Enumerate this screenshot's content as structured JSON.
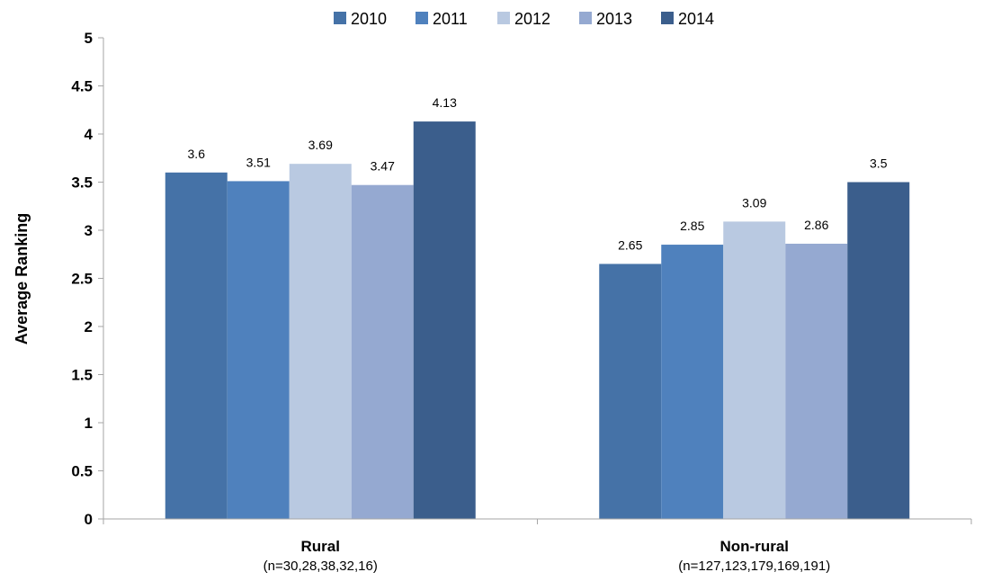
{
  "chart_data": {
    "type": "bar",
    "title": "",
    "xlabel": "",
    "ylabel": "Average Ranking",
    "ylim": [
      0,
      5
    ],
    "yticks": [
      "0",
      "0.5",
      "1",
      "1.5",
      "2",
      "2.5",
      "3",
      "3.5",
      "4",
      "4.5",
      "5"
    ],
    "grid": false,
    "legend_position": "top",
    "categories": [
      "Rural",
      "Non-rural"
    ],
    "category_sublabels": [
      "(n=30,28,38,32,16)",
      "(n=127,123,179,169,191)"
    ],
    "series": [
      {
        "name": "2010",
        "color": "#4572A7",
        "values": [
          3.6,
          2.65
        ],
        "labels": [
          "3.6",
          "2.65"
        ]
      },
      {
        "name": "2011",
        "color": "#4F81BD",
        "values": [
          3.51,
          2.85
        ],
        "labels": [
          "3.51",
          "2.85"
        ]
      },
      {
        "name": "2012",
        "color": "#B9C9E1",
        "values": [
          3.69,
          3.09
        ],
        "labels": [
          "3.69",
          "3.09"
        ]
      },
      {
        "name": "2013",
        "color": "#95A9D1",
        "values": [
          3.47,
          2.86
        ],
        "labels": [
          "3.47",
          "2.86"
        ]
      },
      {
        "name": "2014",
        "color": "#3B5E8C",
        "values": [
          4.13,
          3.5
        ],
        "labels": [
          "4.13",
          "3.5"
        ]
      }
    ]
  }
}
